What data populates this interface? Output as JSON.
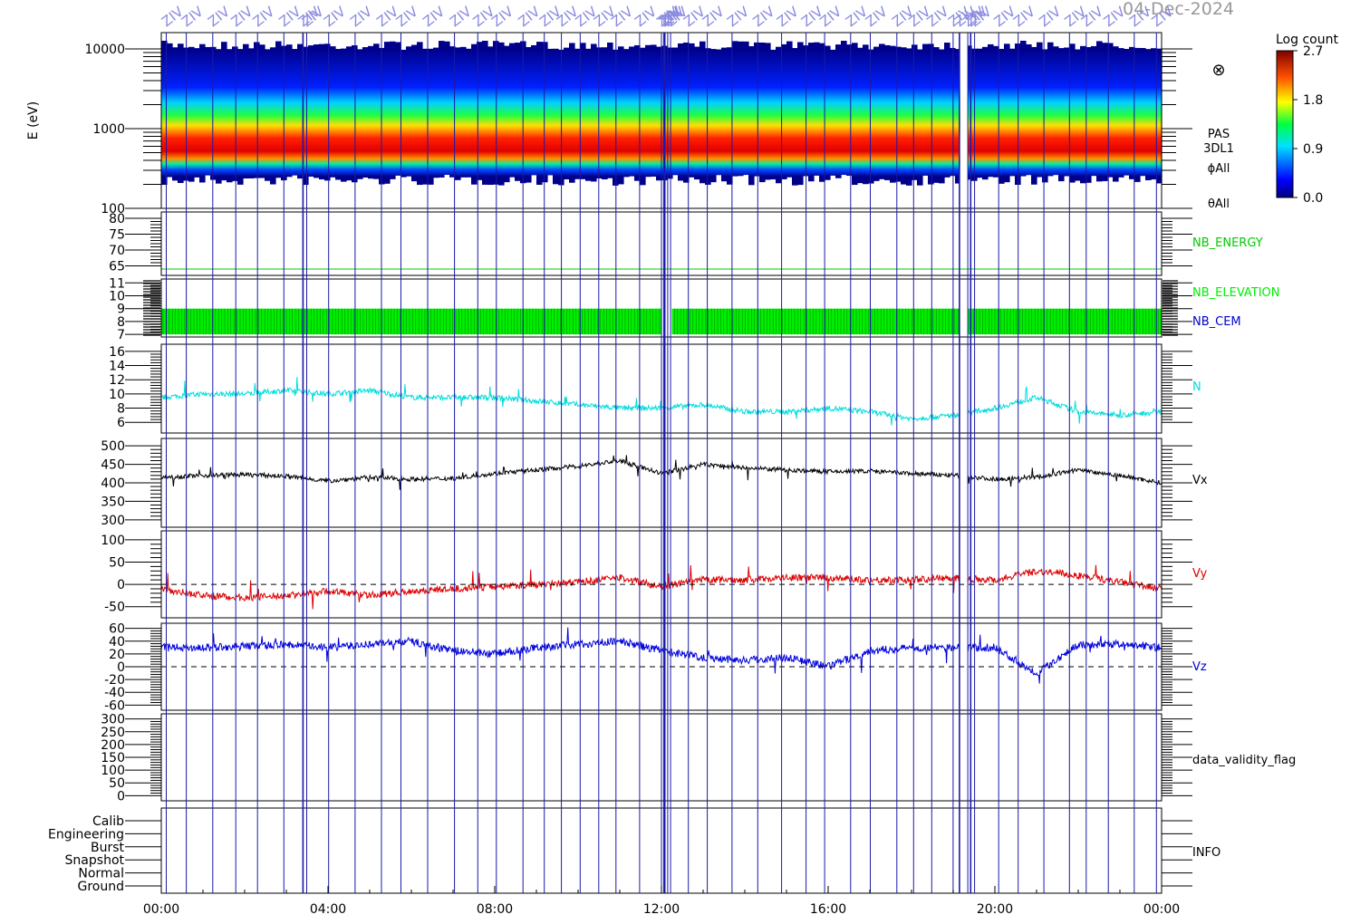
{
  "header": {
    "date_label": "04-Dec-2024"
  },
  "colorbar": {
    "title": "Log count",
    "ticks": [
      "2.7",
      "1.8",
      "0.9",
      "0.0"
    ],
    "range": [
      0,
      2.7
    ]
  },
  "chart_data": {
    "type": "line",
    "x_axis": {
      "ticks": [
        "00:00",
        "04:00",
        "08:00",
        "12:00",
        "16:00",
        "20:00",
        "00:00"
      ],
      "range_hours": [
        0,
        24
      ]
    },
    "marker_symbol": "⊗",
    "panels": [
      {
        "id": "spectrogram",
        "type": "heatmap",
        "ylabel": "E (eV)",
        "yscale": "log",
        "ylim": [
          100,
          16000
        ],
        "y_ticks": [
          "10000",
          "1000",
          "100"
        ],
        "y_tick_values": [
          10000,
          1000,
          100
        ],
        "side_labels": [
          "PAS",
          "3DL1",
          "ϕAll",
          "θAll"
        ],
        "peak_energy_eV": 1000,
        "band_low_eV": 250,
        "band_high_eV": 10000,
        "data_gaps_hours": [
          [
            19.15,
            19.35
          ]
        ]
      },
      {
        "id": "nb-energy",
        "ylim": [
          62,
          82
        ],
        "y_ticks": [
          "80",
          "75",
          "70",
          "65"
        ],
        "y_tick_values": [
          80,
          75,
          70,
          65
        ],
        "series": [
          {
            "name": "NB_ENERGY",
            "color": "#00cc00",
            "constant": 64
          }
        ]
      },
      {
        "id": "nb-elevation-cem",
        "ylim": [
          6.8,
          11.3
        ],
        "y_ticks": [
          "11",
          "10",
          "9",
          "8",
          "7"
        ],
        "y_tick_values": [
          11,
          10,
          9,
          8,
          7
        ],
        "series": [
          {
            "name": "NB_ELEVATION",
            "color": "#00ee00",
            "band": [
              7,
              9
            ]
          },
          {
            "name": "NB_CEM",
            "color": "#0000cc"
          }
        ]
      },
      {
        "id": "density",
        "ylim": [
          4.5,
          17
        ],
        "y_ticks": [
          "16",
          "14",
          "12",
          "10",
          "8",
          "6"
        ],
        "y_tick_values": [
          16,
          14,
          12,
          10,
          8,
          6
        ],
        "series": [
          {
            "name": "N",
            "color": "#00dddd",
            "x": [
              0,
              1,
              2,
              3,
              4,
              5,
              6,
              7,
              8,
              9,
              10,
              11,
              12,
              13,
              14,
              15,
              16,
              17,
              18,
              19,
              20,
              21,
              22,
              23,
              24
            ],
            "y": [
              9.5,
              10,
              10,
              10.5,
              10,
              10.5,
              9.5,
              9.5,
              9.5,
              9,
              8.5,
              8,
              8,
              8.5,
              7.5,
              7.5,
              8,
              7.5,
              6.5,
              7,
              8,
              9.5,
              7.5,
              7,
              7.5
            ]
          }
        ]
      },
      {
        "id": "vx",
        "ylim": [
          280,
          520
        ],
        "y_ticks": [
          "500",
          "450",
          "400",
          "350",
          "300"
        ],
        "y_tick_values": [
          500,
          450,
          400,
          350,
          300
        ],
        "series": [
          {
            "name": "Vx",
            "color": "#000000",
            "x": [
              0,
              1,
              2,
              3,
              4,
              5,
              6,
              7,
              8,
              9,
              10,
              11,
              12,
              13,
              14,
              15,
              16,
              17,
              18,
              19,
              20,
              21,
              22,
              23,
              24
            ],
            "y": [
              415,
              420,
              422,
              418,
              405,
              415,
              410,
              412,
              425,
              435,
              445,
              460,
              425,
              450,
              440,
              435,
              430,
              432,
              425,
              420,
              410,
              415,
              435,
              420,
              400
            ]
          }
        ]
      },
      {
        "id": "vy",
        "ylim": [
          -75,
          120
        ],
        "y_ticks": [
          "100",
          "50",
          "0",
          "-50"
        ],
        "y_tick_values": [
          100,
          50,
          0,
          -50
        ],
        "zero_line": true,
        "series": [
          {
            "name": "Vy",
            "color": "#dd0000",
            "x": [
              0,
              1,
              2,
              3,
              4,
              5,
              6,
              7,
              8,
              9,
              10,
              11,
              12,
              13,
              14,
              15,
              16,
              17,
              18,
              19,
              20,
              21,
              22,
              23,
              24
            ],
            "y": [
              -10,
              -25,
              -30,
              -25,
              -15,
              -25,
              -15,
              -10,
              -5,
              0,
              5,
              15,
              -5,
              10,
              10,
              15,
              15,
              10,
              10,
              15,
              10,
              30,
              20,
              5,
              -10
            ]
          }
        ]
      },
      {
        "id": "vz",
        "ylim": [
          -68,
          68
        ],
        "y_ticks": [
          "60",
          "40",
          "20",
          "0",
          "-20",
          "-40",
          "-60"
        ],
        "y_tick_values": [
          60,
          40,
          20,
          0,
          -20,
          -40,
          -60
        ],
        "zero_line": true,
        "series": [
          {
            "name": "Vz",
            "color": "#0000dd",
            "x": [
              0,
              1,
              2,
              3,
              4,
              5,
              6,
              7,
              8,
              9,
              10,
              11,
              12,
              13,
              14,
              15,
              16,
              17,
              18,
              19,
              20,
              21,
              22,
              23,
              24
            ],
            "y": [
              30,
              30,
              32,
              35,
              30,
              35,
              40,
              25,
              20,
              30,
              35,
              40,
              25,
              15,
              10,
              15,
              0,
              25,
              30,
              30,
              30,
              -10,
              35,
              35,
              30
            ]
          }
        ]
      },
      {
        "id": "data-validity",
        "ylim": [
          -20,
          320
        ],
        "y_ticks": [
          "300",
          "250",
          "200",
          "150",
          "100",
          "50",
          "0"
        ],
        "y_tick_values": [
          300,
          250,
          200,
          150,
          100,
          50,
          0
        ],
        "series": [
          {
            "name": "data_validity_flag",
            "color": "#000000"
          }
        ]
      },
      {
        "id": "info",
        "y_ticks": [
          "Calib",
          "Engineering",
          "Burst",
          "Snapshot",
          "Normal",
          "Ground"
        ],
        "series": [
          {
            "name": "INFO",
            "color": "#000000"
          }
        ]
      }
    ]
  }
}
